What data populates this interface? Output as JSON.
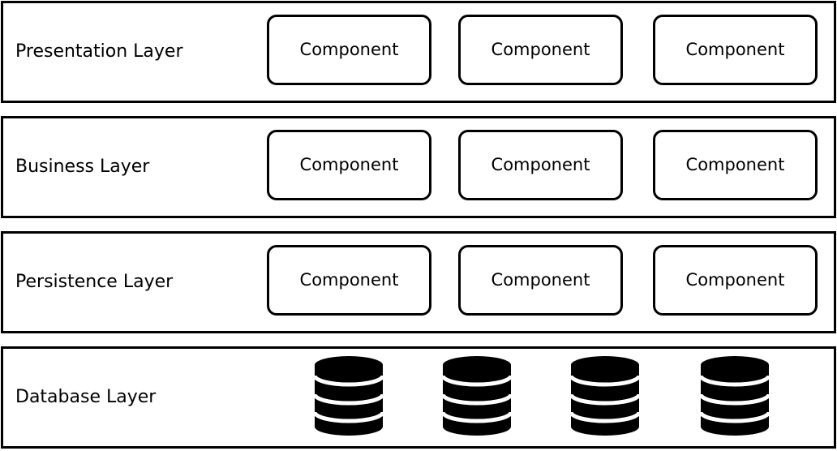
{
  "layers": [
    {
      "label": "Presentation Layer",
      "components": [
        "Component",
        "Component",
        "Component"
      ]
    },
    {
      "label": "Business Layer",
      "components": [
        "Component",
        "Component",
        "Component"
      ]
    },
    {
      "label": "Persistence Layer",
      "components": [
        "Component",
        "Component",
        "Component"
      ]
    },
    {
      "label": "Database Layer",
      "icons": [
        "database-icon",
        "database-icon",
        "database-icon",
        "database-icon"
      ]
    }
  ],
  "colors": {
    "stroke": "#000000",
    "fill": "#ffffff"
  }
}
